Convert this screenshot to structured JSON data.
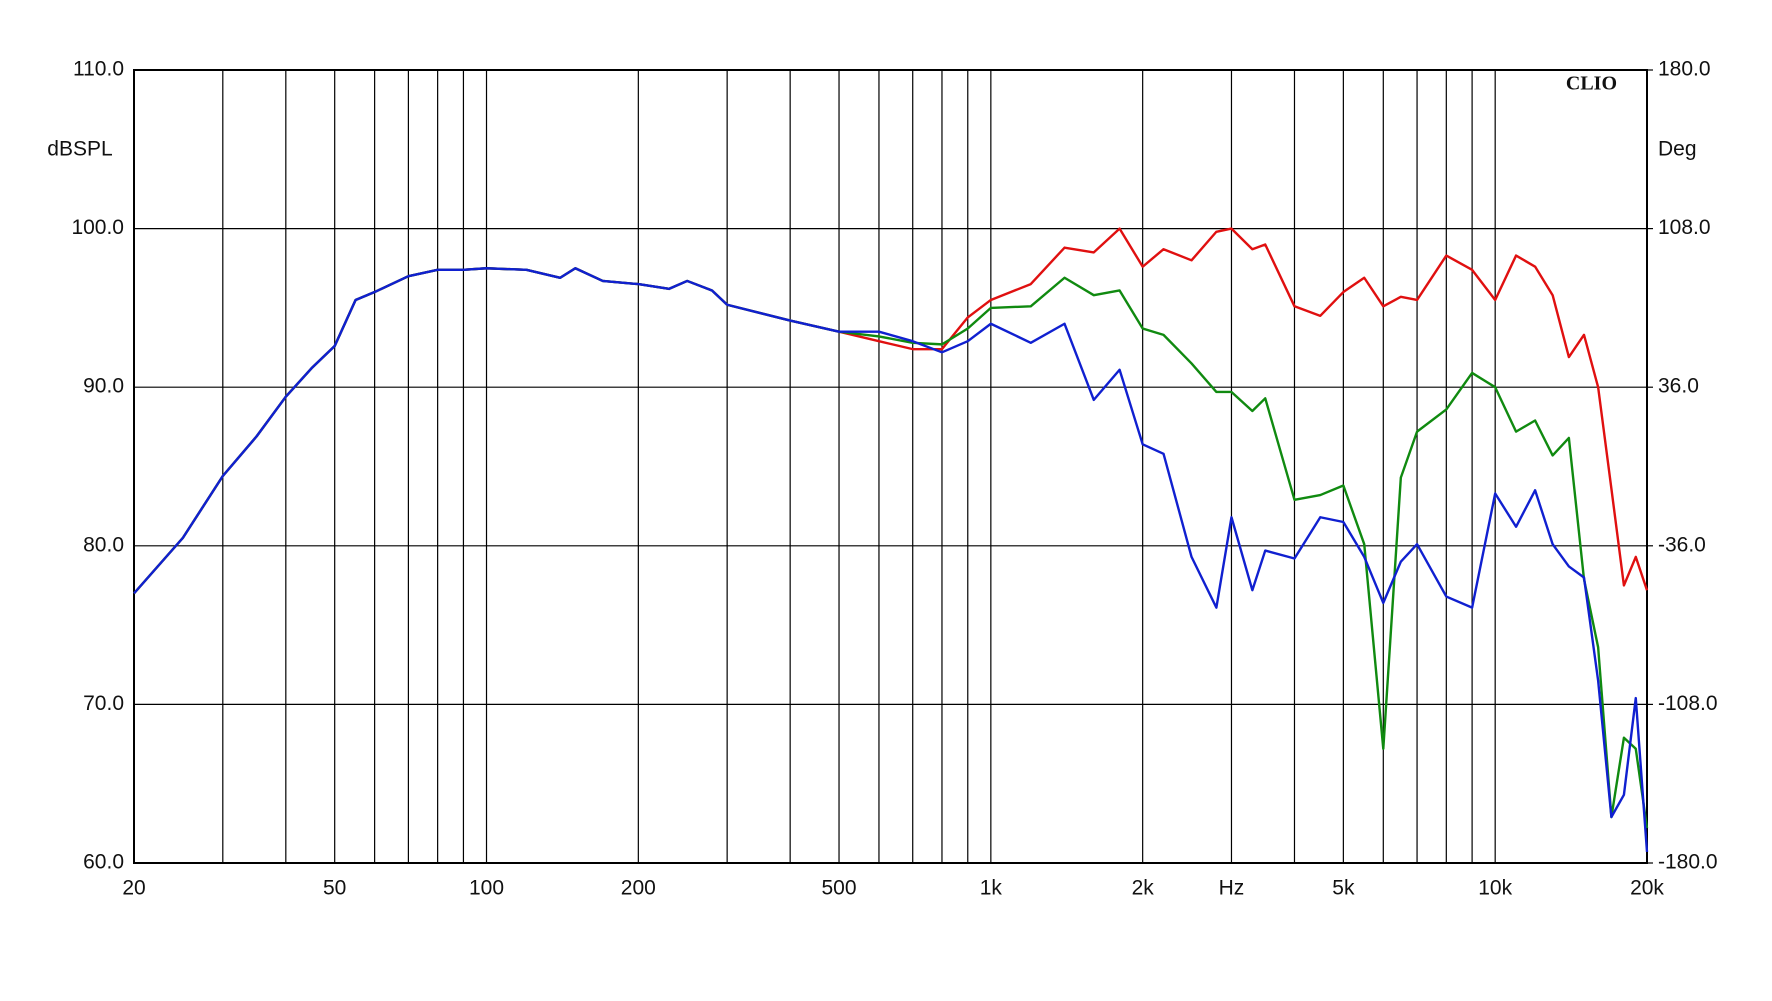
{
  "chart_data": {
    "type": "line",
    "brand": "CLIO",
    "ylabel": "dBSPL",
    "y2label": "Deg",
    "xscale": "log",
    "grid": true,
    "xlim": [
      20,
      20000
    ],
    "xticks": [
      20,
      50,
      100,
      200,
      500,
      {
        "value": 1000,
        "label": "1k"
      },
      {
        "value": 2000,
        "label": "2k"
      },
      {
        "value": 3000,
        "label": "Hz"
      },
      {
        "value": 5000,
        "label": "5k"
      },
      {
        "value": 10000,
        "label": "10k"
      },
      {
        "value": 20000,
        "label": "20k"
      }
    ],
    "xgrid": [
      30,
      40,
      60,
      70,
      80,
      90,
      300,
      400,
      600,
      700,
      800,
      900,
      4000,
      6000,
      7000,
      8000,
      9000
    ],
    "ylim": [
      60,
      110
    ],
    "yticks": [
      {
        "value": 60,
        "label": "60.0"
      },
      {
        "value": 70,
        "label": "70.0"
      },
      {
        "value": 80,
        "label": "80.0"
      },
      {
        "value": 90,
        "label": "90.0"
      },
      {
        "value": 100,
        "label": "100.0"
      },
      {
        "value": 110,
        "label": "110.0"
      }
    ],
    "y2lim": [
      -180,
      180
    ],
    "y2ticks": [
      {
        "value": -180,
        "label": "-180.0"
      },
      {
        "value": -108,
        "label": "-108.0"
      },
      {
        "value": -36,
        "label": "-36.0"
      },
      {
        "value": 36,
        "label": "36.0"
      },
      {
        "value": 108,
        "label": "108.0"
      },
      {
        "value": 180,
        "label": "180.0"
      }
    ],
    "x": [
      20,
      25,
      30,
      35,
      40,
      45,
      50,
      55,
      60,
      70,
      80,
      90,
      100,
      120,
      140,
      150,
      170,
      200,
      230,
      250,
      280,
      300,
      400,
      500,
      600,
      700,
      800,
      900,
      1000,
      1200,
      1400,
      1600,
      1800,
      2000,
      2200,
      2500,
      2800,
      3000,
      3300,
      3500,
      4000,
      4500,
      5000,
      5500,
      6000,
      6500,
      7000,
      8000,
      9000,
      10000,
      11000,
      12000,
      13000,
      14000,
      15000,
      16000,
      17000,
      18000,
      19000,
      20000
    ],
    "series": [
      {
        "color": "#e01010",
        "values": [
          77.0,
          80.5,
          84.4,
          86.9,
          89.4,
          91.2,
          92.6,
          95.5,
          96.0,
          97.0,
          97.4,
          97.4,
          97.5,
          97.4,
          96.9,
          97.5,
          96.7,
          96.5,
          96.2,
          96.7,
          96.1,
          95.2,
          94.2,
          93.5,
          92.9,
          92.4,
          92.4,
          94.4,
          95.5,
          96.5,
          98.8,
          98.5,
          100.0,
          97.6,
          98.7,
          98.0,
          99.8,
          100.0,
          98.7,
          99.0,
          95.1,
          94.5,
          96.0,
          96.9,
          95.1,
          95.7,
          95.5,
          98.3,
          97.4,
          95.5,
          98.3,
          97.6,
          95.8,
          91.9,
          93.3,
          90.0,
          83.6,
          77.5,
          79.3,
          77.2
        ]
      },
      {
        "color": "#108a10",
        "values": [
          77.0,
          80.5,
          84.4,
          86.9,
          89.4,
          91.2,
          92.6,
          95.5,
          96.0,
          97.0,
          97.4,
          97.4,
          97.5,
          97.4,
          96.9,
          97.5,
          96.7,
          96.5,
          96.2,
          96.7,
          96.1,
          95.2,
          94.2,
          93.5,
          93.2,
          92.8,
          92.7,
          93.7,
          95.0,
          95.1,
          96.9,
          95.8,
          96.1,
          93.7,
          93.3,
          91.5,
          89.7,
          89.7,
          88.5,
          89.3,
          82.9,
          83.2,
          83.8,
          80.1,
          67.2,
          84.3,
          87.2,
          88.6,
          90.9,
          90.0,
          87.2,
          87.9,
          85.7,
          86.8,
          77.9,
          73.6,
          62.9,
          67.9,
          67.2,
          62.2
        ]
      },
      {
        "color": "#1020d0",
        "values": [
          77.0,
          80.5,
          84.4,
          86.9,
          89.4,
          91.2,
          92.6,
          95.5,
          96.0,
          97.0,
          97.4,
          97.4,
          97.5,
          97.4,
          96.9,
          97.5,
          96.7,
          96.5,
          96.2,
          96.7,
          96.1,
          95.2,
          94.2,
          93.5,
          93.5,
          92.9,
          92.2,
          92.9,
          94.0,
          92.8,
          94.0,
          89.2,
          91.1,
          86.4,
          85.8,
          79.3,
          76.1,
          81.8,
          77.2,
          79.7,
          79.2,
          81.8,
          81.5,
          79.3,
          76.4,
          79.0,
          80.1,
          76.8,
          76.1,
          83.3,
          81.2,
          83.5,
          80.1,
          78.7,
          78.0,
          71.5,
          62.9,
          64.3,
          70.4,
          60.7
        ]
      }
    ]
  }
}
